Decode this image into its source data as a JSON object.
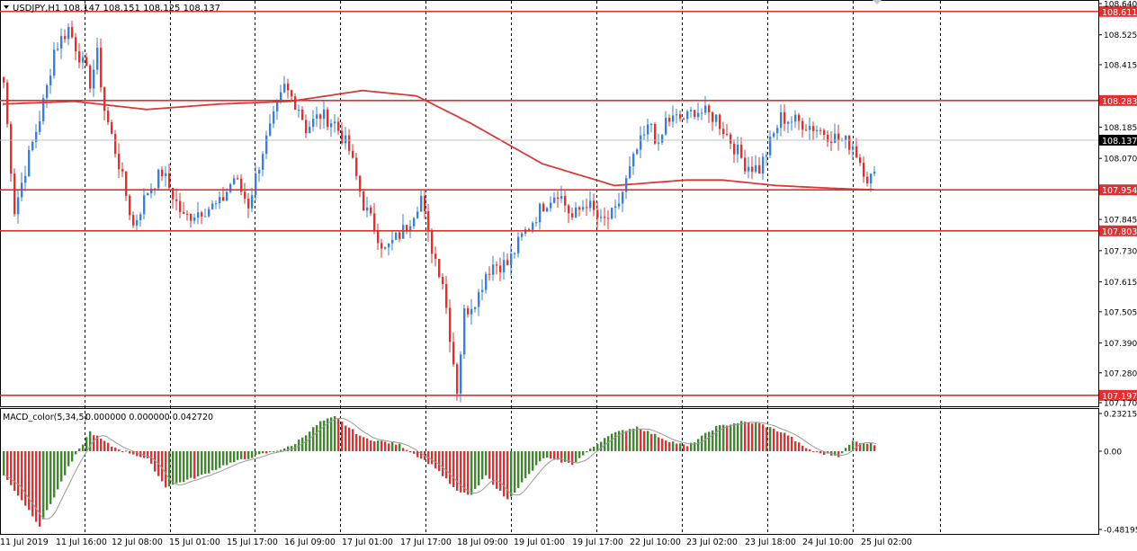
{
  "main_header": {
    "symbol_timeframe": "USDJPY,H1",
    "ohlc": "108.147 108.151 108.125 108.137"
  },
  "indicator_header": {
    "name": "MACD_color(5,34,5)",
    "values": "0.000000 0.000000 0.042720"
  },
  "colors": {
    "bull": "#3a80d8",
    "bear": "#e03030",
    "ma": "#d83a3a",
    "hline": "#e03030",
    "macd_pos": "#3c8a28",
    "macd_neg": "#e03030",
    "signal": "#999999",
    "grid": "#000000",
    "background": "#ffffff"
  },
  "chart_data": [
    {
      "type": "candlestick",
      "title": "USDJPY,H1",
      "ylim": [
        107.17,
        108.64
      ],
      "y_ticks": [
        "108.640",
        "108.525",
        "108.415",
        "108.185",
        "108.070",
        "107.845",
        "107.730",
        "107.615",
        "107.505",
        "107.390",
        "107.280",
        "107.170"
      ],
      "x_ticks": [
        "11 Jul 2019",
        "11 Jul 16:00",
        "12 Jul 08:00",
        "15 Jul 01:00",
        "15 Jul 17:00",
        "16 Jul 09:00",
        "17 Jul 01:00",
        "17 Jul 17:00",
        "18 Jul 09:00",
        "19 Jul 01:00",
        "19 Jul 17:00",
        "22 Jul 10:00",
        "23 Jul 02:00",
        "23 Jul 18:00",
        "24 Jul 10:00",
        "25 Jul 02:00"
      ],
      "horizontal_lines": [
        {
          "value": 108.611,
          "label": "108.611"
        },
        {
          "value": 108.283,
          "label": "108.283"
        },
        {
          "value": 107.954,
          "label": "107.954"
        },
        {
          "value": 107.803,
          "label": "107.803"
        },
        {
          "value": 107.197,
          "label": "107.197"
        }
      ],
      "current_price": {
        "value": 108.137,
        "label": "108.137"
      },
      "moving_average": {
        "x": [
          0,
          20,
          40,
          60,
          80,
          100,
          115,
          130,
          150,
          170,
          190,
          200,
          215,
          230,
          240,
          260
        ],
        "y": [
          108.27,
          108.28,
          108.25,
          108.27,
          108.28,
          108.32,
          108.3,
          108.2,
          108.05,
          107.97,
          107.99,
          107.99,
          107.97,
          107.96,
          107.955,
          107.955
        ]
      },
      "anchors": {
        "x": [
          0,
          3,
          6,
          10,
          12,
          14,
          18,
          24,
          26,
          28,
          32,
          36,
          40,
          44,
          50,
          55,
          60,
          64,
          68,
          72,
          78,
          82,
          84,
          88,
          92,
          96,
          100,
          106,
          112,
          116,
          118,
          122,
          126,
          128,
          132,
          134,
          136,
          140,
          144,
          150,
          154,
          158,
          162,
          166,
          170,
          176,
          180,
          182,
          184,
          190,
          192,
          198,
          206,
          210,
          216,
          222,
          226,
          232,
          236,
          240,
          242
        ],
        "y": [
          108.35,
          107.88,
          108.03,
          108.22,
          108.33,
          108.47,
          108.55,
          108.35,
          108.45,
          108.25,
          108.05,
          107.82,
          107.95,
          108.02,
          107.85,
          107.88,
          107.9,
          108.0,
          107.9,
          108.1,
          108.33,
          108.26,
          108.18,
          108.23,
          108.2,
          108.1,
          107.9,
          107.73,
          107.82,
          107.93,
          107.78,
          107.62,
          107.22,
          107.5,
          107.57,
          107.65,
          107.68,
          107.68,
          107.78,
          107.9,
          107.95,
          107.85,
          107.91,
          107.83,
          107.87,
          108.1,
          108.2,
          108.1,
          108.21,
          108.22,
          108.25,
          108.22,
          108.05,
          108.03,
          108.22,
          108.2,
          108.18,
          108.14,
          108.12,
          108.0,
          108.0
        ]
      },
      "candle_count": 243
    },
    {
      "type": "bar",
      "title": "MACD_color(5,34,5)",
      "ylim": [
        -0.48195,
        0.232152
      ],
      "y_ticks": [
        "0.232152",
        "0.00",
        "-0.48195"
      ],
      "macd_anchors": {
        "x": [
          0,
          5,
          10,
          18,
          24,
          30,
          40,
          45,
          55,
          62,
          70,
          80,
          88,
          92,
          100,
          110,
          120,
          126,
          130,
          134,
          140,
          150,
          158,
          168,
          176,
          184,
          190,
          198,
          205,
          210,
          218,
          222,
          226,
          232,
          236,
          240,
          242
        ],
        "y": [
          -0.15,
          -0.3,
          -0.46,
          -0.1,
          0.12,
          0.03,
          -0.05,
          -0.22,
          -0.15,
          -0.08,
          -0.03,
          0.03,
          0.18,
          0.21,
          0.08,
          0.04,
          -0.1,
          -0.25,
          -0.27,
          -0.15,
          -0.3,
          -0.04,
          -0.08,
          0.1,
          0.15,
          0.07,
          0.03,
          0.15,
          0.18,
          0.17,
          0.1,
          0.03,
          -0.01,
          -0.03,
          0.06,
          0.05,
          0.04
        ]
      },
      "signal_lag": 3,
      "bar_count": 243
    }
  ]
}
